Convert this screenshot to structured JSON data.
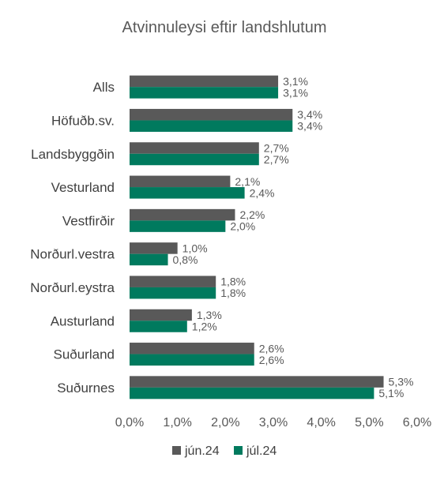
{
  "chart_data": {
    "type": "bar",
    "orientation": "horizontal",
    "title": "Atvinnuleysi eftir landshlutum",
    "categories": [
      "Alls",
      "Höfuðb.sv.",
      "Landsbyggðin",
      "Vesturland",
      "Vestfirðir",
      "Norðurl.vestra",
      "Norðurl.eystra",
      "Austurland",
      "Suðurland",
      "Suðurnes"
    ],
    "series": [
      {
        "name": "jún.24",
        "color": "#595959",
        "values": [
          3.1,
          3.4,
          2.7,
          2.1,
          2.2,
          1.0,
          1.8,
          1.3,
          2.6,
          5.3
        ],
        "labels": [
          "3,1%",
          "3,4%",
          "2,7%",
          "2,1%",
          "2,2%",
          "1,0%",
          "1,8%",
          "1,3%",
          "2,6%",
          "5,3%"
        ]
      },
      {
        "name": "júl.24",
        "color": "#007A5E",
        "values": [
          3.1,
          3.4,
          2.7,
          2.4,
          2.0,
          0.8,
          1.8,
          1.2,
          2.6,
          5.1
        ],
        "labels": [
          "3,1%",
          "3,4%",
          "2,7%",
          "2,4%",
          "2,0%",
          "0,8%",
          "1,8%",
          "1,2%",
          "2,6%",
          "5,1%"
        ]
      }
    ],
    "xlim": [
      0,
      6
    ],
    "xticks": [
      0,
      1,
      2,
      3,
      4,
      5,
      6
    ],
    "xtick_labels": [
      "0,0%",
      "1,0%",
      "2,0%",
      "3,0%",
      "4,0%",
      "5,0%",
      "6,0%"
    ],
    "grid": false,
    "legend_position": "bottom-center"
  }
}
